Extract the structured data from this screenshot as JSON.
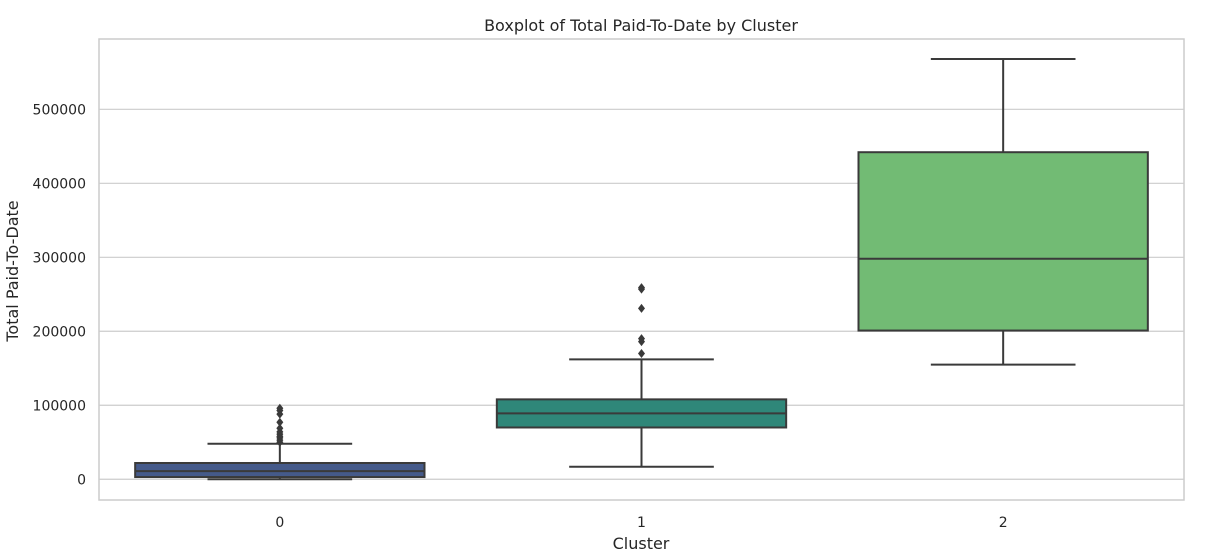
{
  "chart_data": {
    "type": "boxplot",
    "title": "Boxplot of Total Paid-To-Date by Cluster",
    "xlabel": "Cluster",
    "ylabel": "Total Paid-To-Date",
    "categories": [
      "0",
      "1",
      "2"
    ],
    "ylim": [
      -28000,
      595000
    ],
    "yticks": [
      0,
      100000,
      200000,
      300000,
      400000,
      500000
    ],
    "ytick_labels": [
      "0",
      "100000",
      "200000",
      "300000",
      "400000",
      "500000"
    ],
    "grid": "horizontal",
    "boxes": [
      {
        "category": "0",
        "whisker_low": 0,
        "q1": 3000,
        "median": 11000,
        "q3": 22000,
        "whisker_high": 48000,
        "outliers": [
          50000,
          53000,
          56000,
          58000,
          61000,
          64000,
          69000,
          77000,
          88000,
          93000,
          96000
        ],
        "color": "#455a8a"
      },
      {
        "category": "1",
        "whisker_low": 17000,
        "q1": 70000,
        "median": 89000,
        "q3": 108000,
        "whisker_high": 162000,
        "outliers": [
          170000,
          186000,
          190000,
          231000,
          257000,
          259000
        ],
        "color": "#2f8779"
      },
      {
        "category": "2",
        "whisker_low": 155000,
        "q1": 201000,
        "median": 298000,
        "q3": 442000,
        "whisker_high": 568000,
        "outliers": [],
        "color": "#72bb74"
      }
    ]
  }
}
